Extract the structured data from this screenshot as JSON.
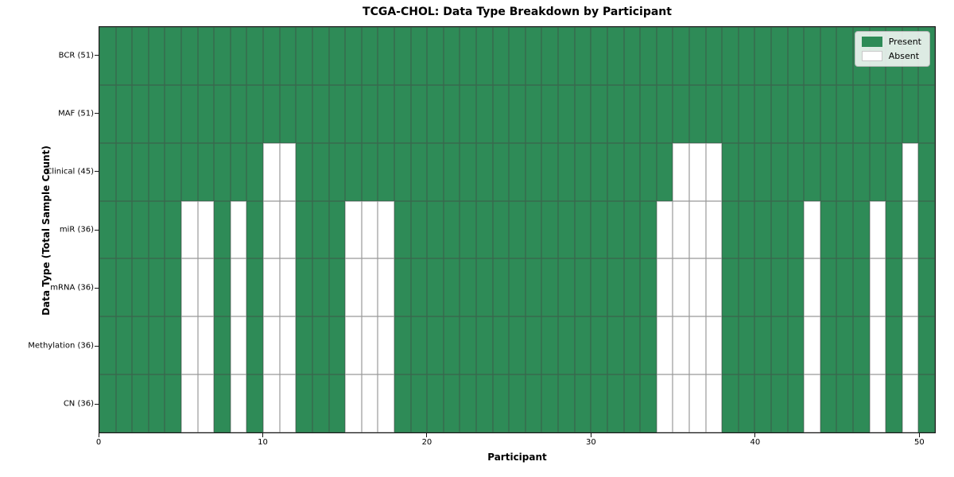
{
  "chart_data": {
    "type": "heatmap",
    "title": "TCGA-CHOL: Data Type Breakdown by Participant",
    "xlabel": "Participant",
    "ylabel": "Data Type (Total Sample Count)",
    "n_participants": 51,
    "xlim": [
      0,
      51
    ],
    "x_ticks": [
      0,
      10,
      20,
      30,
      40,
      50
    ],
    "grid": "cell-edges",
    "legend": {
      "position": "upper right",
      "entries": [
        {
          "label": "Present",
          "color": "#2e8b57"
        },
        {
          "label": "Absent",
          "color": "#ffffff"
        }
      ]
    },
    "colors": {
      "present": "#2e8b57",
      "absent": "#ffffff",
      "cell_edge": "#6e6e6e",
      "spine": "#141414"
    },
    "rows": [
      {
        "label": "BCR (51)",
        "data_type": "BCR",
        "present_count": 51,
        "absent_participants": []
      },
      {
        "label": "MAF (51)",
        "data_type": "MAF",
        "present_count": 51,
        "absent_participants": []
      },
      {
        "label": "Clinical (45)",
        "data_type": "Clinical",
        "present_count": 45,
        "absent_participants": [
          10,
          11,
          35,
          36,
          37,
          49
        ]
      },
      {
        "label": "miR (36)",
        "data_type": "miR",
        "present_count": 36,
        "absent_participants": [
          5,
          6,
          8,
          10,
          11,
          15,
          16,
          17,
          34,
          35,
          36,
          37,
          43,
          47,
          49
        ]
      },
      {
        "label": "mRNA (36)",
        "data_type": "mRNA",
        "present_count": 36,
        "absent_participants": [
          5,
          6,
          8,
          10,
          11,
          15,
          16,
          17,
          34,
          35,
          36,
          37,
          43,
          47,
          49
        ]
      },
      {
        "label": "Methylation (36)",
        "data_type": "Methylation",
        "present_count": 36,
        "absent_participants": [
          5,
          6,
          8,
          10,
          11,
          15,
          16,
          17,
          34,
          35,
          36,
          37,
          43,
          47,
          49
        ]
      },
      {
        "label": "CN (36)",
        "data_type": "CN",
        "present_count": 36,
        "absent_participants": [
          5,
          6,
          8,
          10,
          11,
          15,
          16,
          17,
          34,
          35,
          36,
          37,
          43,
          47,
          49
        ]
      }
    ]
  }
}
